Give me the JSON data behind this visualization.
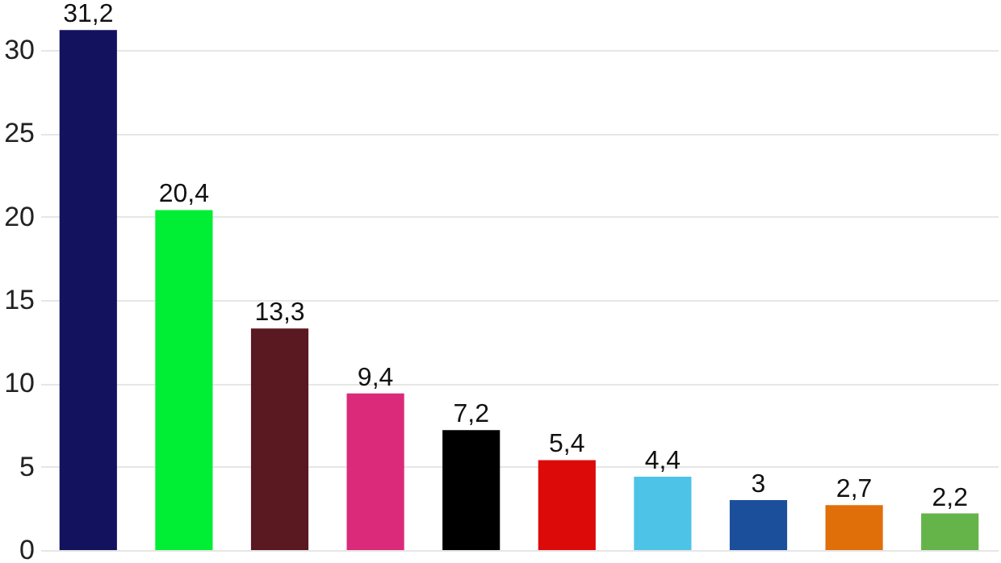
{
  "chart_data": {
    "type": "bar",
    "categories": [
      null,
      null,
      null,
      null,
      null,
      null,
      null,
      null,
      null,
      null
    ],
    "values": [
      31.2,
      20.4,
      13.3,
      9.4,
      7.2,
      5.4,
      4.4,
      3,
      2.7,
      2.2
    ],
    "colors": [
      "#12125e",
      "#00ee33",
      "#5a1820",
      "#dc2a7a",
      "#000000",
      "#dd0a0a",
      "#4ec3e8",
      "#1b4f9c",
      "#e06f0a",
      "#64b44a"
    ],
    "value_labels": [
      "31,2",
      "20,4",
      "13,3",
      "9,4",
      "7,2",
      "5,4",
      "4,4",
      "3",
      "2,7",
      "2,2"
    ],
    "ylim": [
      0,
      33
    ],
    "yticks": [
      0,
      5,
      10,
      15,
      20,
      25,
      30
    ],
    "grid": "y",
    "tick_labels": "y"
  }
}
